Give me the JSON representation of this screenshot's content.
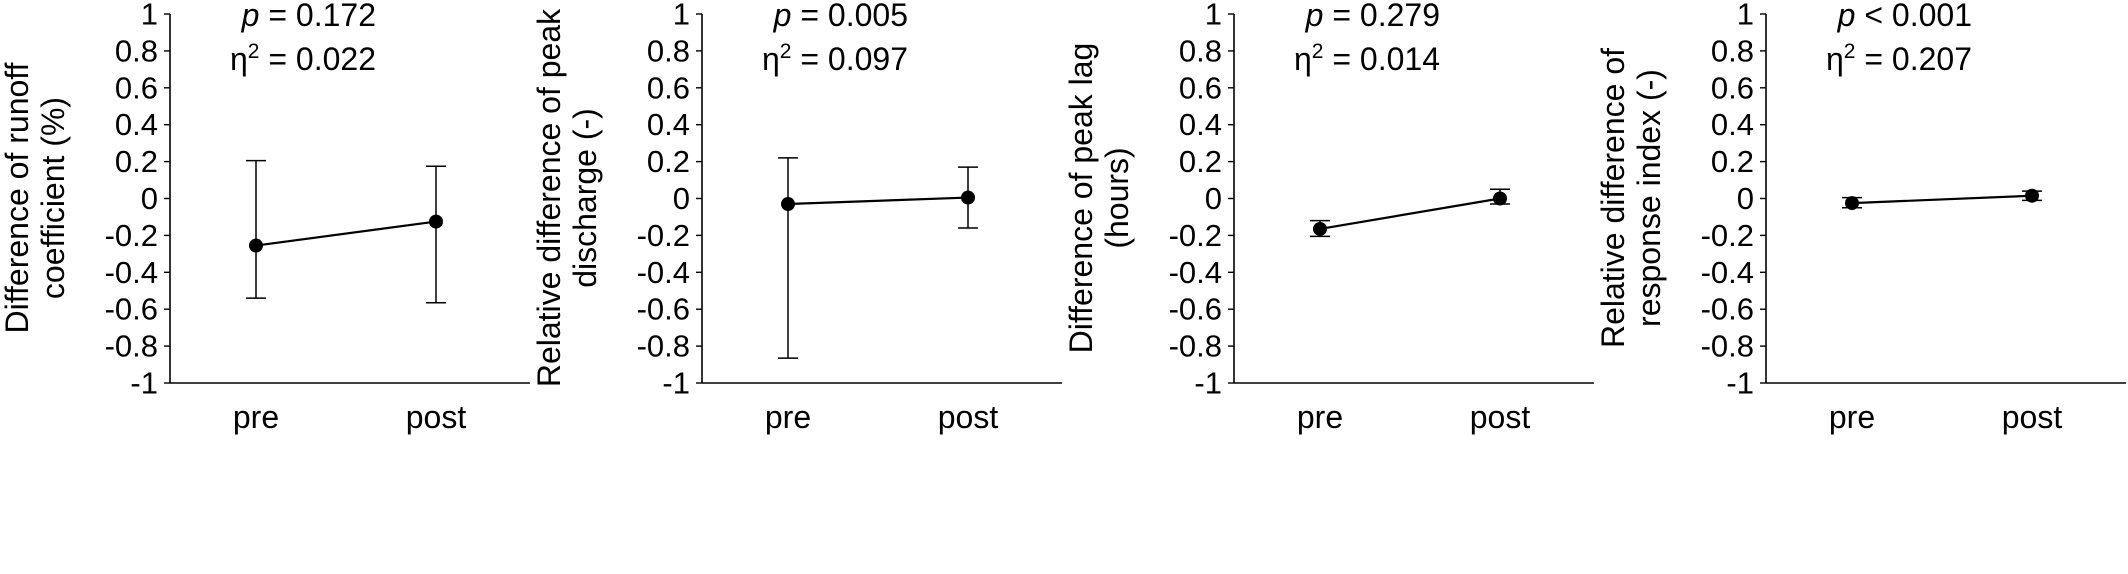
{
  "chart_data": [
    {
      "type": "line",
      "categories": [
        "pre",
        "post"
      ],
      "series": [
        {
          "values": [
            -0.255,
            -0.125
          ],
          "err_low": [
            -0.54,
            -0.565
          ],
          "err_high": [
            0.205,
            0.175
          ]
        }
      ],
      "ylim": [
        -1,
        1
      ],
      "yticks": [
        "1",
        "0.8",
        "0.6",
        "0.4",
        "0.2",
        "0",
        "-0.2",
        "-0.4",
        "-0.6",
        "-0.8",
        "-1"
      ],
      "ylabel_lines": [
        "Difference of runoff",
        "coefficient (%)"
      ],
      "p_label": "p",
      "p_rest": " = 0.172",
      "eta_base": "η",
      "eta_sup": "2",
      "eta_rest": " = 0.022"
    },
    {
      "type": "line",
      "categories": [
        "pre",
        "post"
      ],
      "series": [
        {
          "values": [
            -0.03,
            0.005
          ],
          "err_low": [
            -0.865,
            -0.16
          ],
          "err_high": [
            0.22,
            0.17
          ]
        }
      ],
      "ylim": [
        -1,
        1
      ],
      "yticks": [
        "1",
        "0.8",
        "0.6",
        "0.4",
        "0.2",
        "0",
        "-0.2",
        "-0.4",
        "-0.6",
        "-0.8",
        "-1"
      ],
      "ylabel_lines": [
        "Relative difference of peak",
        "discharge (-)"
      ],
      "p_label": "p",
      "p_rest": " = 0.005",
      "eta_base": "η",
      "eta_sup": "2",
      "eta_rest": " = 0.097"
    },
    {
      "type": "line",
      "categories": [
        "pre",
        "post"
      ],
      "series": [
        {
          "values": [
            -0.165,
            0.0
          ],
          "err_low": [
            -0.205,
            -0.03
          ],
          "err_high": [
            -0.12,
            0.05
          ]
        }
      ],
      "ylim": [
        -1,
        1
      ],
      "yticks": [
        "1",
        "0.8",
        "0.6",
        "0.4",
        "0.2",
        "0",
        "-0.2",
        "-0.4",
        "-0.6",
        "-0.8",
        "-1"
      ],
      "ylabel_lines": [
        "Difference of peak lag",
        "(hours)"
      ],
      "p_label": "p",
      "p_rest": " = 0.279",
      "eta_base": "η",
      "eta_sup": "2",
      "eta_rest": " = 0.014"
    },
    {
      "type": "line",
      "categories": [
        "pre",
        "post"
      ],
      "series": [
        {
          "values": [
            -0.025,
            0.015
          ],
          "err_low": [
            -0.05,
            -0.01
          ],
          "err_high": [
            0.005,
            0.04
          ]
        }
      ],
      "ylim": [
        -1,
        1
      ],
      "yticks": [
        "1",
        "0.8",
        "0.6",
        "0.4",
        "0.2",
        "0",
        "-0.2",
        "-0.4",
        "-0.6",
        "-0.8",
        "-1"
      ],
      "ylabel_lines": [
        "Relative difference of",
        "response index (-)"
      ],
      "p_label": "p",
      "p_rest": " < 0.001",
      "eta_base": "η",
      "eta_sup": "2",
      "eta_rest": " = 0.207"
    }
  ]
}
